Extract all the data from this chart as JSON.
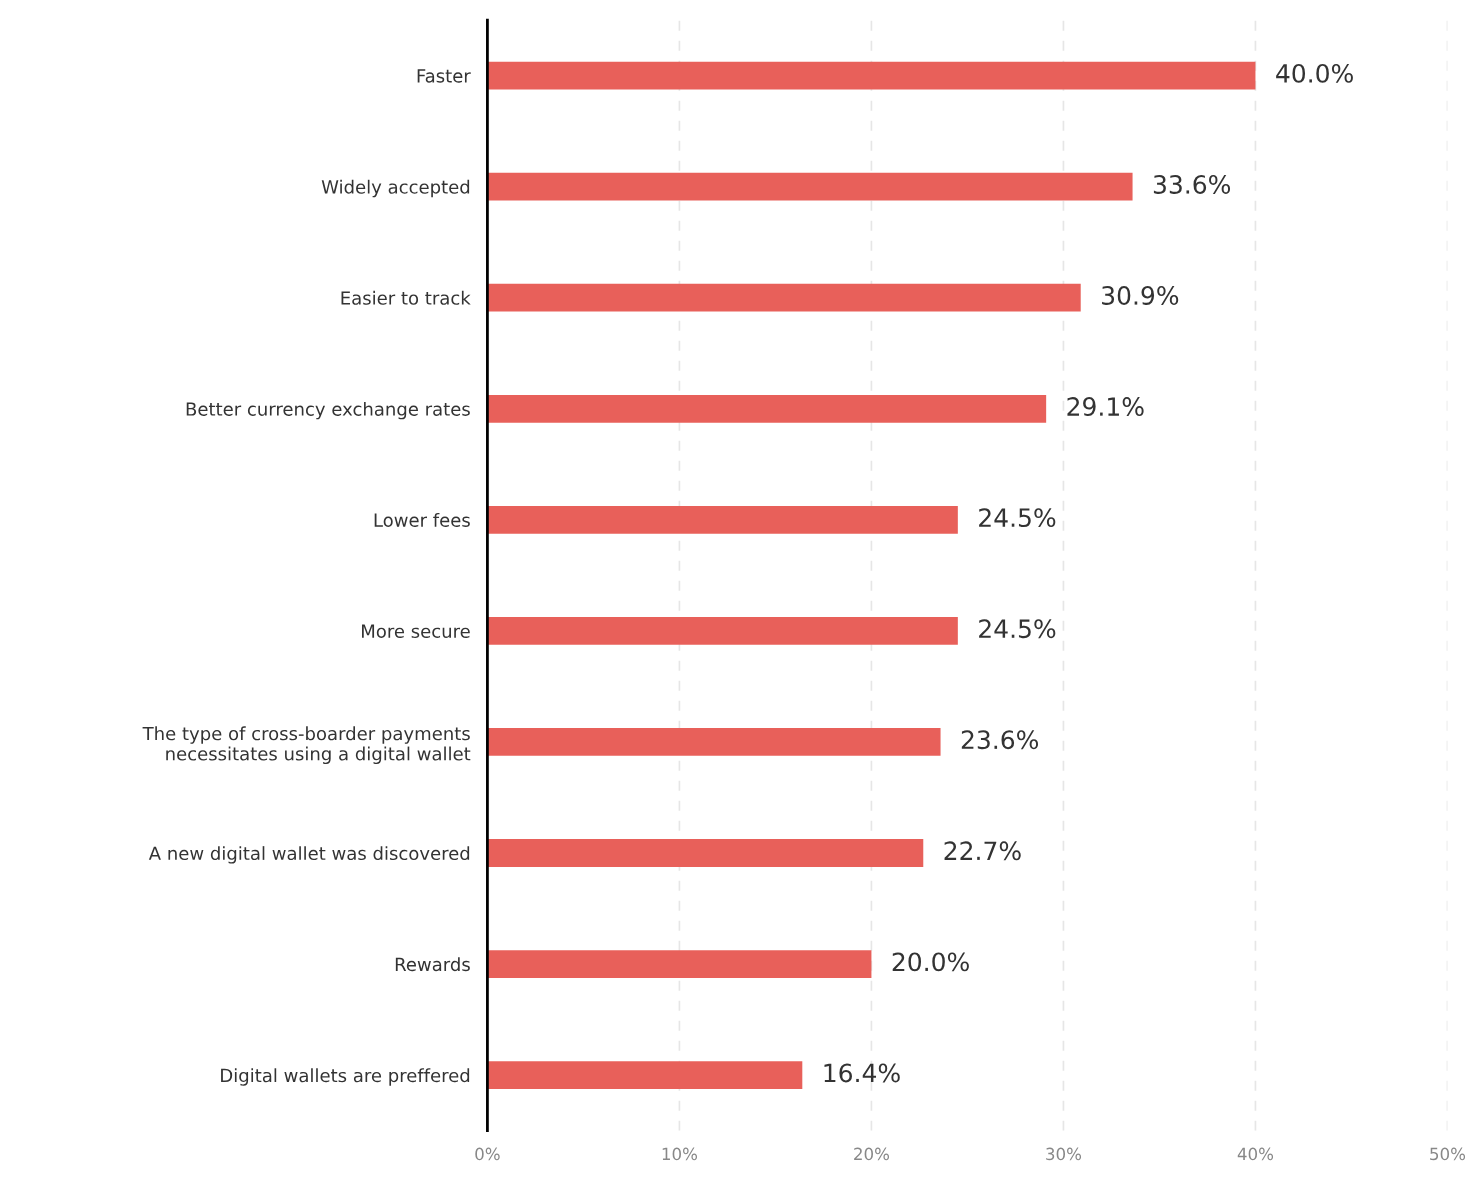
{
  "chart_data": {
    "type": "bar",
    "orientation": "horizontal",
    "categories": [
      "Faster",
      "Widely accepted",
      "Easier to track",
      "Better currency exchange rates",
      "Lower fees",
      "More secure",
      "The type of cross-boarder payments\nnecessitates using a digital wallet",
      "A new digital wallet was discovered",
      "Rewards",
      "Digital wallets are preffered"
    ],
    "values": [
      40.0,
      33.6,
      30.9,
      29.1,
      24.5,
      24.5,
      23.6,
      22.7,
      20.0,
      16.4
    ],
    "value_labels": [
      "40.0%",
      "33.6%",
      "30.9%",
      "29.1%",
      "24.5%",
      "24.5%",
      "23.6%",
      "22.7%",
      "20.0%",
      "16.4%"
    ],
    "color": "#e8605a",
    "xlim": [
      0,
      50
    ],
    "xticks": [
      {
        "value": 0,
        "label": "0%"
      },
      {
        "value": 10,
        "label": "10%"
      },
      {
        "value": 20,
        "label": "20%"
      },
      {
        "value": 30,
        "label": "30%"
      },
      {
        "value": 40,
        "label": "40%"
      },
      {
        "value": 50,
        "label": "50%"
      }
    ],
    "grid": "x"
  }
}
